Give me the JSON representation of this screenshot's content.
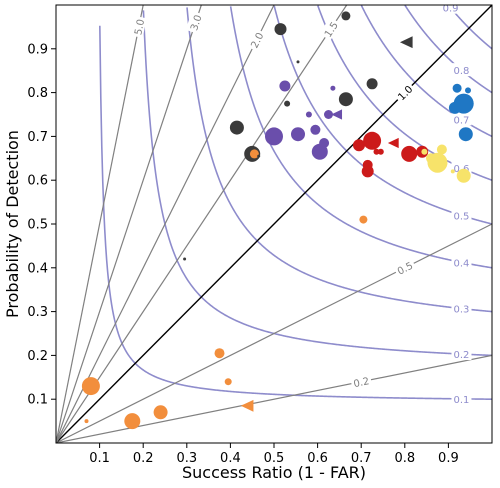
{
  "chart_data": {
    "type": "scatter",
    "subtype": "performance-diagram",
    "xlabel": "Success Ratio (1 - FAR)",
    "ylabel": "Probability of Detection",
    "xlim": [
      0,
      1
    ],
    "ylim": [
      0,
      1
    ],
    "xticks": [
      "0.1",
      "0.2",
      "0.3",
      "0.4",
      "0.5",
      "0.6",
      "0.7",
      "0.8",
      "0.9"
    ],
    "yticks": [
      "0.1",
      "0.2",
      "0.3",
      "0.4",
      "0.5",
      "0.6",
      "0.7",
      "0.8",
      "0.9"
    ],
    "grid": false,
    "csi_contours": {
      "color": "#8e8ccc",
      "levels": [
        0.1,
        0.2,
        0.3,
        0.4,
        0.5,
        0.6,
        0.7,
        0.8,
        0.9
      ],
      "labels": [
        "0.1",
        "0.2",
        "0.3",
        "0.4",
        "0.5",
        "0.6",
        "0.7",
        "0.8",
        "0.9"
      ]
    },
    "bias_lines": {
      "color": "#808080",
      "unity_color": "#000000",
      "levels": [
        0.2,
        0.5,
        1.0,
        1.5,
        2.0,
        3.0,
        5.0
      ],
      "labels": [
        "0.2",
        "0.5",
        "1.0",
        "1.5",
        "2.0",
        "3.0",
        "5.0"
      ]
    },
    "colors": {
      "orange": "#f28e3c",
      "gray": "#3a3a3a",
      "purple": "#6a4eab",
      "red": "#cc1a1a",
      "yellow": "#f7e36a",
      "blue": "#1f77c4"
    },
    "points": [
      {
        "x": 0.08,
        "y": 0.13,
        "r": 9,
        "marker": "circle",
        "color": "orange"
      },
      {
        "x": 0.07,
        "y": 0.05,
        "r": 2,
        "marker": "circle",
        "color": "orange"
      },
      {
        "x": 0.175,
        "y": 0.05,
        "r": 8,
        "marker": "circle",
        "color": "orange"
      },
      {
        "x": 0.24,
        "y": 0.07,
        "r": 7,
        "marker": "circle",
        "color": "orange"
      },
      {
        "x": 0.375,
        "y": 0.205,
        "r": 5,
        "marker": "circle",
        "color": "orange"
      },
      {
        "x": 0.395,
        "y": 0.14,
        "r": 3.5,
        "marker": "circle",
        "color": "orange"
      },
      {
        "x": 0.44,
        "y": 0.085,
        "r": 7,
        "marker": "triangle-left",
        "color": "orange"
      },
      {
        "x": 0.45,
        "y": 0.66,
        "r": 8,
        "marker": "circle",
        "color": "gray"
      },
      {
        "x": 0.455,
        "y": 0.66,
        "r": 4.5,
        "marker": "circle",
        "color": "orange"
      },
      {
        "x": 0.705,
        "y": 0.51,
        "r": 4,
        "marker": "circle",
        "color": "orange"
      },
      {
        "x": 0.295,
        "y": 0.42,
        "r": 1.5,
        "marker": "circle",
        "color": "gray"
      },
      {
        "x": 0.415,
        "y": 0.72,
        "r": 7,
        "marker": "circle",
        "color": "gray"
      },
      {
        "x": 0.465,
        "y": 0.655,
        "r": 1.5,
        "marker": "circle",
        "color": "gray"
      },
      {
        "x": 0.515,
        "y": 0.945,
        "r": 6,
        "marker": "circle",
        "color": "gray"
      },
      {
        "x": 0.555,
        "y": 0.87,
        "r": 1.5,
        "marker": "circle",
        "color": "gray"
      },
      {
        "x": 0.53,
        "y": 0.775,
        "r": 3,
        "marker": "circle",
        "color": "gray"
      },
      {
        "x": 0.665,
        "y": 0.975,
        "r": 4.5,
        "marker": "circle",
        "color": "gray"
      },
      {
        "x": 0.665,
        "y": 0.785,
        "r": 7,
        "marker": "circle",
        "color": "gray"
      },
      {
        "x": 0.725,
        "y": 0.82,
        "r": 5.5,
        "marker": "circle",
        "color": "gray"
      },
      {
        "x": 0.805,
        "y": 0.915,
        "r": 7,
        "marker": "triangle-left",
        "color": "gray"
      },
      {
        "x": 0.525,
        "y": 0.815,
        "r": 5.5,
        "marker": "circle",
        "color": "purple"
      },
      {
        "x": 0.5,
        "y": 0.7,
        "r": 9,
        "marker": "circle",
        "color": "purple"
      },
      {
        "x": 0.555,
        "y": 0.705,
        "r": 7,
        "marker": "circle",
        "color": "purple"
      },
      {
        "x": 0.58,
        "y": 0.75,
        "r": 3,
        "marker": "circle",
        "color": "purple"
      },
      {
        "x": 0.595,
        "y": 0.715,
        "r": 5,
        "marker": "circle",
        "color": "purple"
      },
      {
        "x": 0.625,
        "y": 0.75,
        "r": 4.5,
        "marker": "circle",
        "color": "purple"
      },
      {
        "x": 0.615,
        "y": 0.685,
        "r": 5,
        "marker": "circle",
        "color": "purple"
      },
      {
        "x": 0.605,
        "y": 0.665,
        "r": 8,
        "marker": "circle",
        "color": "purple"
      },
      {
        "x": 0.635,
        "y": 0.81,
        "r": 2.5,
        "marker": "circle",
        "color": "purple"
      },
      {
        "x": 0.645,
        "y": 0.75,
        "r": 6,
        "marker": "triangle-left",
        "color": "purple"
      },
      {
        "x": 0.695,
        "y": 0.68,
        "r": 6,
        "marker": "circle",
        "color": "red"
      },
      {
        "x": 0.725,
        "y": 0.69,
        "r": 9,
        "marker": "circle",
        "color": "red"
      },
      {
        "x": 0.715,
        "y": 0.635,
        "r": 5,
        "marker": "circle",
        "color": "red"
      },
      {
        "x": 0.715,
        "y": 0.62,
        "r": 6,
        "marker": "circle",
        "color": "red"
      },
      {
        "x": 0.735,
        "y": 0.665,
        "r": 3,
        "marker": "circle",
        "color": "red"
      },
      {
        "x": 0.745,
        "y": 0.665,
        "r": 3,
        "marker": "circle",
        "color": "red"
      },
      {
        "x": 0.775,
        "y": 0.685,
        "r": 6,
        "marker": "triangle-left",
        "color": "red"
      },
      {
        "x": 0.81,
        "y": 0.66,
        "r": 8,
        "marker": "circle",
        "color": "red"
      },
      {
        "x": 0.84,
        "y": 0.665,
        "r": 6,
        "marker": "circle",
        "color": "red"
      },
      {
        "x": 0.845,
        "y": 0.665,
        "r": 3,
        "marker": "circle",
        "color": "yellow"
      },
      {
        "x": 0.86,
        "y": 0.65,
        "r": 5,
        "marker": "circle",
        "color": "yellow"
      },
      {
        "x": 0.875,
        "y": 0.64,
        "r": 10,
        "marker": "circle",
        "color": "yellow"
      },
      {
        "x": 0.885,
        "y": 0.67,
        "r": 5,
        "marker": "circle",
        "color": "yellow"
      },
      {
        "x": 0.91,
        "y": 0.62,
        "r": 2,
        "marker": "circle",
        "color": "yellow"
      },
      {
        "x": 0.935,
        "y": 0.61,
        "r": 7,
        "marker": "circle",
        "color": "yellow"
      },
      {
        "x": 0.92,
        "y": 0.81,
        "r": 4.5,
        "marker": "circle",
        "color": "blue"
      },
      {
        "x": 0.945,
        "y": 0.805,
        "r": 3,
        "marker": "circle",
        "color": "blue"
      },
      {
        "x": 0.915,
        "y": 0.765,
        "r": 6,
        "marker": "circle",
        "color": "blue"
      },
      {
        "x": 0.935,
        "y": 0.775,
        "r": 10,
        "marker": "circle",
        "color": "blue"
      },
      {
        "x": 0.94,
        "y": 0.705,
        "r": 7,
        "marker": "circle",
        "color": "blue"
      }
    ]
  }
}
